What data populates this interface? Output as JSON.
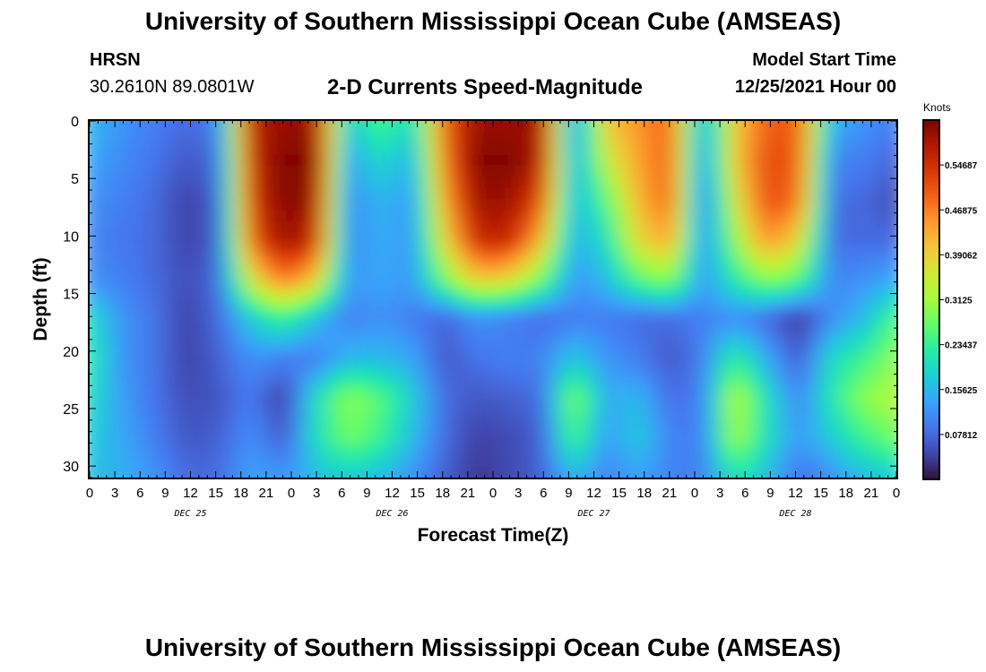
{
  "header": {
    "title": "University of Southern Mississippi Ocean Cube (AMSEAS)",
    "station": "HRSN",
    "coords": "30.2610N  89.0801W",
    "subtitle": "2-D Currents Speed-Magnitude",
    "model_start_label": "Model Start Time",
    "model_start_value": "12/25/2021 Hour 00"
  },
  "footer": {
    "title": "University of Southern Mississippi Ocean Cube (AMSEAS)"
  },
  "chart_data": {
    "type": "heatmap",
    "title": "2-D Currents Speed-Magnitude",
    "xlabel": "Forecast Time(Z)",
    "ylabel": "Depth (ft)",
    "x_tick_labels": [
      "0",
      "3",
      "6",
      "9",
      "12",
      "15",
      "18",
      "21",
      "0",
      "3",
      "6",
      "9",
      "12",
      "15",
      "18",
      "21",
      "0",
      "3",
      "6",
      "9",
      "12",
      "15",
      "18",
      "21",
      "0",
      "3",
      "6",
      "9",
      "12",
      "15",
      "18",
      "21",
      "0"
    ],
    "x_hours_range": [
      0,
      96
    ],
    "date_labels": [
      {
        "hour": 12,
        "label": "DEC 25"
      },
      {
        "hour": 36,
        "label": "DEC 26"
      },
      {
        "hour": 60,
        "label": "DEC 27"
      },
      {
        "hour": 84,
        "label": "DEC 28"
      }
    ],
    "y_tick_labels": [
      "0",
      "5",
      "10",
      "15",
      "20",
      "25",
      "30"
    ],
    "ylim": [
      0,
      31
    ],
    "colorbar": {
      "title": "Knots",
      "range": [
        0,
        0.625
      ],
      "tick_labels": [
        "0.54687",
        "0.46875",
        "0.39062",
        "0.3125",
        "0.23437",
        "0.15625",
        "0.07812"
      ],
      "tick_values": [
        0.54687,
        0.46875,
        0.39062,
        0.3125,
        0.23437,
        0.15625,
        0.07812
      ],
      "colors": [
        "#30123b",
        "#4145ab",
        "#4675ed",
        "#39a2fc",
        "#1bcfd4",
        "#24eca6",
        "#61fc6c",
        "#a4fc3b",
        "#d1e834",
        "#f3c63a",
        "#fe9b2d",
        "#f36315",
        "#d93806",
        "#b11901",
        "#7a0403"
      ]
    },
    "speed_knots": [
      [
        0.16,
        0.12,
        0.1,
        0.08,
        0.1,
        0.58,
        0.6,
        0.6,
        0.16,
        0.26,
        0.18,
        0.5,
        0.6,
        0.6,
        0.6,
        0.1,
        0.4,
        0.45,
        0.5,
        0.12,
        0.4,
        0.5,
        0.5,
        0.15,
        0.12,
        0.1
      ],
      [
        0.14,
        0.11,
        0.09,
        0.06,
        0.08,
        0.56,
        0.62,
        0.62,
        0.12,
        0.2,
        0.14,
        0.48,
        0.62,
        0.62,
        0.58,
        0.12,
        0.34,
        0.44,
        0.5,
        0.1,
        0.4,
        0.52,
        0.5,
        0.1,
        0.1,
        0.07
      ],
      [
        0.12,
        0.1,
        0.08,
        0.04,
        0.07,
        0.54,
        0.62,
        0.6,
        0.1,
        0.16,
        0.12,
        0.44,
        0.6,
        0.6,
        0.52,
        0.14,
        0.26,
        0.42,
        0.5,
        0.08,
        0.36,
        0.52,
        0.48,
        0.08,
        0.08,
        0.05
      ],
      [
        0.11,
        0.09,
        0.08,
        0.04,
        0.07,
        0.5,
        0.6,
        0.56,
        0.1,
        0.15,
        0.12,
        0.38,
        0.56,
        0.56,
        0.42,
        0.14,
        0.2,
        0.38,
        0.44,
        0.1,
        0.3,
        0.46,
        0.38,
        0.08,
        0.08,
        0.08
      ],
      [
        0.12,
        0.1,
        0.08,
        0.05,
        0.08,
        0.36,
        0.48,
        0.4,
        0.12,
        0.14,
        0.12,
        0.28,
        0.4,
        0.38,
        0.28,
        0.12,
        0.16,
        0.26,
        0.3,
        0.12,
        0.22,
        0.3,
        0.26,
        0.1,
        0.12,
        0.14
      ],
      [
        0.2,
        0.12,
        0.09,
        0.04,
        0.08,
        0.18,
        0.24,
        0.16,
        0.1,
        0.12,
        0.1,
        0.07,
        0.12,
        0.1,
        0.08,
        0.1,
        0.1,
        0.08,
        0.08,
        0.1,
        0.12,
        0.08,
        0.03,
        0.12,
        0.16,
        0.26
      ],
      [
        0.22,
        0.12,
        0.09,
        0.04,
        0.07,
        0.12,
        0.1,
        0.1,
        0.16,
        0.16,
        0.14,
        0.06,
        0.09,
        0.1,
        0.1,
        0.18,
        0.12,
        0.1,
        0.06,
        0.1,
        0.24,
        0.14,
        0.06,
        0.2,
        0.24,
        0.3
      ],
      [
        0.2,
        0.13,
        0.09,
        0.05,
        0.06,
        0.1,
        0.03,
        0.2,
        0.3,
        0.26,
        0.18,
        0.08,
        0.06,
        0.07,
        0.08,
        0.3,
        0.14,
        0.16,
        0.08,
        0.1,
        0.34,
        0.2,
        0.1,
        0.22,
        0.3,
        0.32
      ],
      [
        0.18,
        0.14,
        0.1,
        0.06,
        0.07,
        0.12,
        0.06,
        0.2,
        0.28,
        0.24,
        0.16,
        0.08,
        0.04,
        0.05,
        0.07,
        0.26,
        0.12,
        0.18,
        0.1,
        0.1,
        0.32,
        0.2,
        0.12,
        0.18,
        0.24,
        0.28
      ],
      [
        0.16,
        0.15,
        0.12,
        0.08,
        0.08,
        0.14,
        0.12,
        0.16,
        0.18,
        0.16,
        0.12,
        0.07,
        0.03,
        0.05,
        0.07,
        0.16,
        0.1,
        0.14,
        0.1,
        0.1,
        0.22,
        0.16,
        0.08,
        0.12,
        0.16,
        0.18
      ]
    ]
  }
}
